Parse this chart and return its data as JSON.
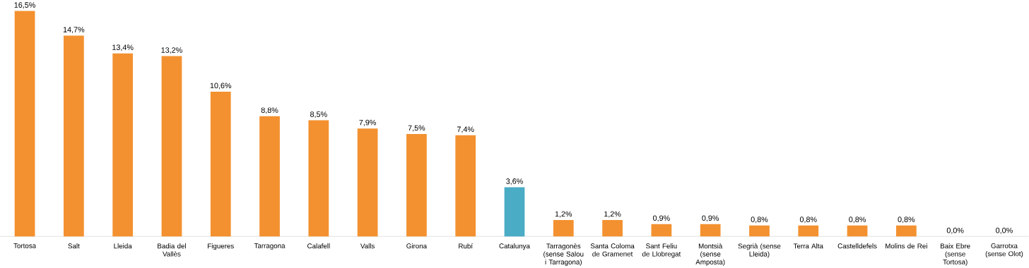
{
  "chart_data": {
    "type": "bar",
    "categories": [
      "Tortosa",
      "Salt",
      "Lleida",
      "Badia del Vallès",
      "Figueres",
      "Tarragona",
      "Calafell",
      "Valls",
      "Girona",
      "Rubí",
      "Catalunya",
      "Tarragonès (sense Salou i Tarragona)",
      "Santa Coloma de Gramenet",
      "Sant Feliu de Llobregat",
      "Montsià (sense Amposta)",
      "Segrià (sense Lleida)",
      "Terra Alta",
      "Castelldefels",
      "Molins de Rei",
      "Baix Ebre (sense Tortosa)",
      "Garrotxa (sense Olot)"
    ],
    "values": [
      16.5,
      14.7,
      13.4,
      13.2,
      10.6,
      8.8,
      8.5,
      7.9,
      7.5,
      7.4,
      3.6,
      1.2,
      1.2,
      0.9,
      0.9,
      0.8,
      0.8,
      0.8,
      0.8,
      0.0,
      0.0
    ],
    "value_labels": [
      "16,5%",
      "14,7%",
      "13,4%",
      "13,2%",
      "10,6%",
      "8,8%",
      "8,5%",
      "7,9%",
      "7,5%",
      "7,4%",
      "3,6%",
      "1,2%",
      "1,2%",
      "0,9%",
      "0,9%",
      "0,8%",
      "0,8%",
      "0,8%",
      "0,8%",
      "0,0%",
      "0,0%"
    ],
    "colors": [
      "#f39130",
      "#f39130",
      "#f39130",
      "#f39130",
      "#f39130",
      "#f39130",
      "#f39130",
      "#f39130",
      "#f39130",
      "#f39130",
      "#4bacc6",
      "#f39130",
      "#f39130",
      "#f39130",
      "#f39130",
      "#f39130",
      "#f39130",
      "#f39130",
      "#f39130",
      "#f39130",
      "#f39130"
    ],
    "orientation": "vertical"
  }
}
